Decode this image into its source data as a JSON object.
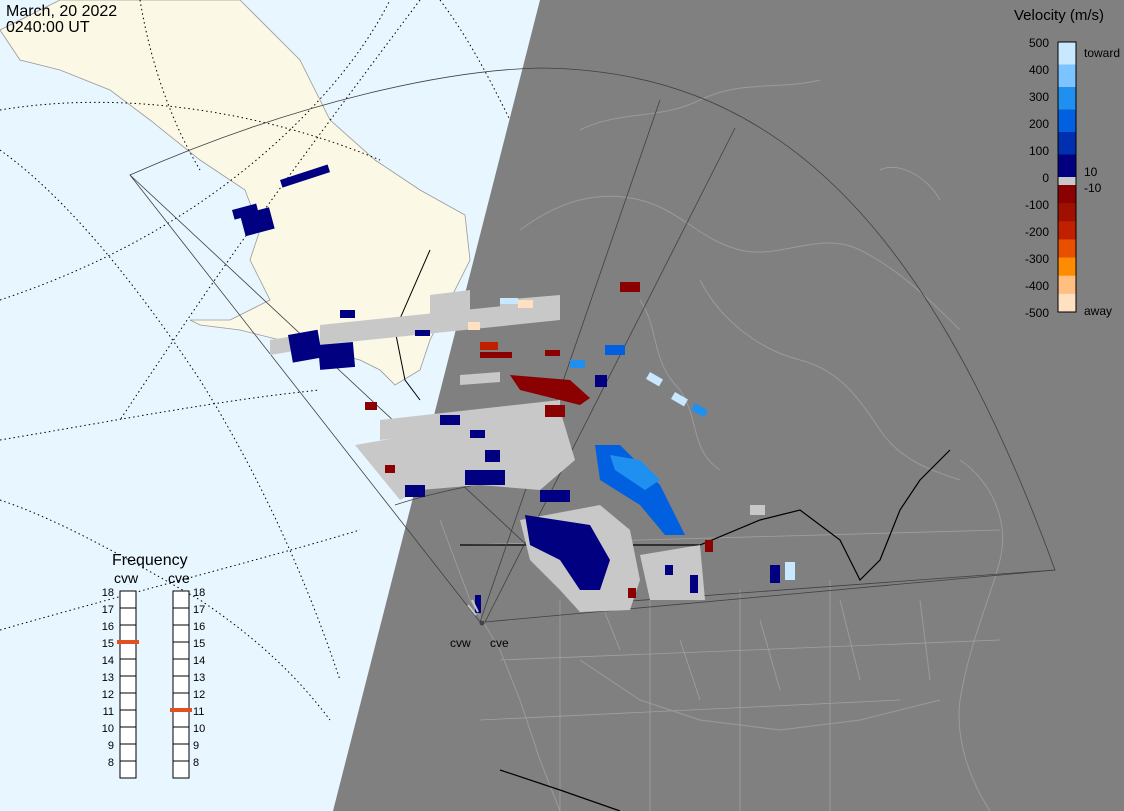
{
  "header": {
    "date": "March, 20 2022",
    "time": "0240:00 UT"
  },
  "colorbar": {
    "title": "Velocity (m/s)",
    "ticks": [
      "500",
      "400",
      "300",
      "200",
      "100",
      "0",
      "-100",
      "-200",
      "-300",
      "-400",
      "-500"
    ],
    "label_top": "toward",
    "label_bottom": "away",
    "label_pos_zero": "10",
    "label_neg_zero": "-10",
    "colors": [
      "#ffe0c0",
      "#ffbf80",
      "#ff8c00",
      "#e85000",
      "#c02000",
      "#8b0000",
      "#000080",
      "#0030b0",
      "#0060e0",
      "#2090f0",
      "#c8e8ff"
    ]
  },
  "radars": {
    "west": {
      "label": "cvw"
    },
    "east": {
      "label": "cve"
    }
  },
  "frequency": {
    "title": "Frequency",
    "levels": [
      "18",
      "17",
      "16",
      "15",
      "14",
      "13",
      "12",
      "11",
      "10",
      "9",
      "8"
    ],
    "cvw_selected": 15,
    "cve_selected": 11
  },
  "colors": {
    "ocean": "#e8f6ff",
    "land": "#fbf8e6",
    "night": "#808080",
    "ground_scatter": "#c8c8c8",
    "marker": "#e05020"
  }
}
